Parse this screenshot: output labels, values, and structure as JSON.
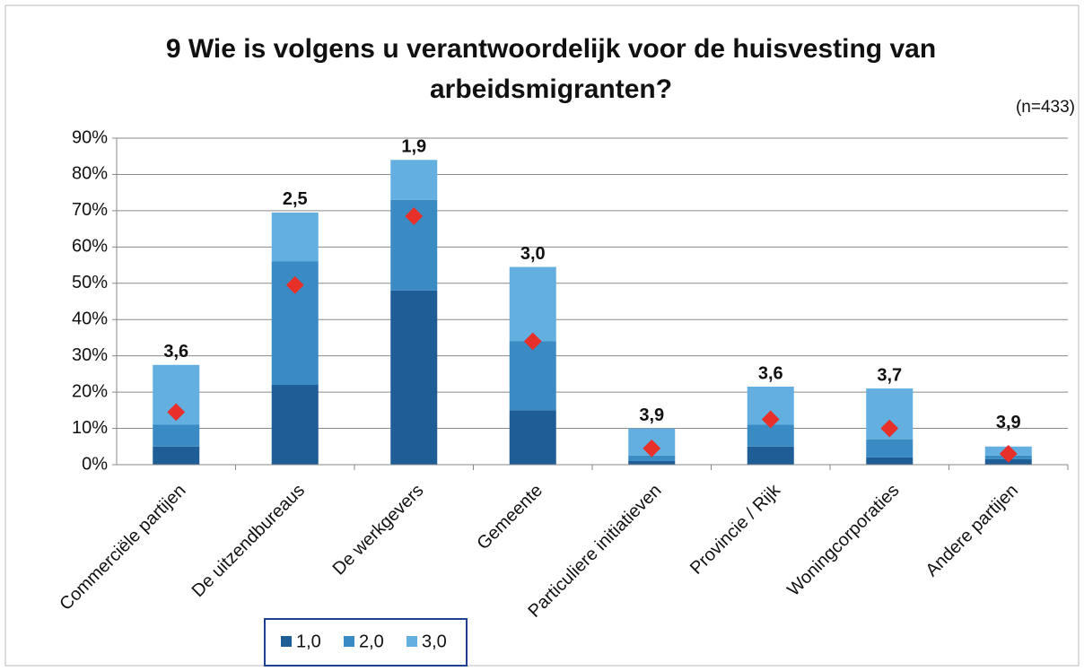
{
  "chart_data": {
    "type": "stacked_bar",
    "title": [
      "9 Wie is volgens u verantwoordelijk voor de huisvesting van",
      "arbeidsmigranten?"
    ],
    "subtitle": "(n=433)",
    "categories": [
      "Commerciële partijen",
      "De uitzendbureaus",
      "De werkgevers",
      "Gemeente",
      "Particuliere initiatieven",
      "Provincie / Rijk",
      "Woningcorporaties",
      "Andere partijen"
    ],
    "series": [
      {
        "name": "1,0",
        "color": "#1f5d96",
        "values": [
          5,
          22,
          48,
          15,
          1,
          5,
          2,
          1.5
        ]
      },
      {
        "name": "2,0",
        "color": "#3a8bc3",
        "values": [
          6,
          34,
          25,
          19,
          1.5,
          6,
          5,
          1
        ]
      },
      {
        "name": "3,0",
        "color": "#62afe0",
        "values": [
          16.5,
          13.5,
          11,
          20.5,
          7.5,
          10.5,
          14,
          2.5
        ]
      }
    ],
    "markers": {
      "color": "#e8302a",
      "values": [
        14.5,
        49.5,
        68.5,
        34,
        4.5,
        12.5,
        10,
        3
      ]
    },
    "score_labels": [
      "3,6",
      "2,5",
      "1,9",
      "3,0",
      "3,9",
      "3,6",
      "3,7",
      "3,9"
    ],
    "ylim": [
      0,
      90
    ],
    "yticks": [
      {
        "value": 0,
        "label": "0%"
      },
      {
        "value": 10,
        "label": "10%"
      },
      {
        "value": 20,
        "label": "20%"
      },
      {
        "value": 30,
        "label": "30%"
      },
      {
        "value": 40,
        "label": "40%"
      },
      {
        "value": 50,
        "label": "50%"
      },
      {
        "value": 60,
        "label": "60%"
      },
      {
        "value": 70,
        "label": "70%"
      },
      {
        "value": 80,
        "label": "80%"
      },
      {
        "value": 90,
        "label": "90%"
      }
    ],
    "grid": true
  }
}
